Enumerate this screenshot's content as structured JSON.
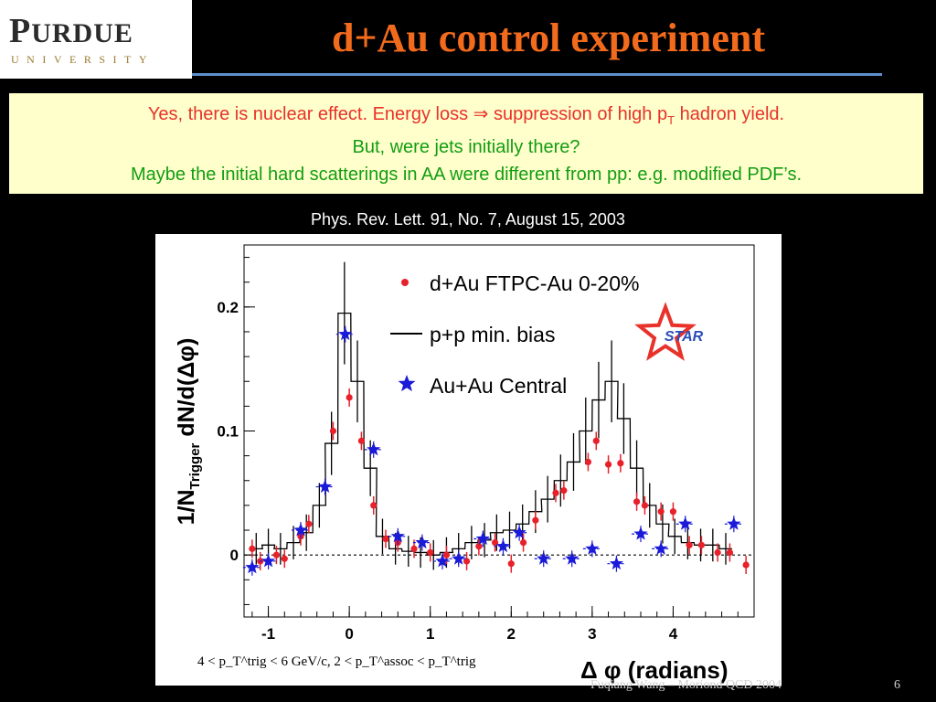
{
  "logo": {
    "name_big": "P",
    "name_small": "URDUE",
    "subtitle": "UNIVERSITY"
  },
  "slide": {
    "title": "d+Au control experiment",
    "callout": {
      "line1_pre": "Yes, there is nuclear effect. Energy loss ⇒ suppression of high p",
      "line1_sub": "T",
      "line1_post": " hadron yield.",
      "line2": "But, were jets initially there?",
      "line3": "Maybe the initial hard scatterings in AA were different from pp: e.g. modified PDF’s."
    },
    "citation": "Phys. Rev. Lett. 91, No. 7, August 15, 2003",
    "footer_author": "Fuqiang Wang – Moriond QCD 2004",
    "page_number": "6"
  },
  "chart_data": {
    "type": "scatter",
    "ylabel": "1/N_Trigger dN/d(Δφ)",
    "xlabel": "Δ φ (radians)",
    "x_ticks": [
      "-1",
      "0",
      "1",
      "2",
      "3",
      "4"
    ],
    "y_ticks": [
      "0",
      "0.1",
      "0.2"
    ],
    "xlim": [
      -1.3,
      5.0
    ],
    "ylim": [
      -0.05,
      0.25
    ],
    "cut_label": "4 < p_T^trig < 6 GeV/c, 2 < p_T^assoc < p_T^trig",
    "experiment_logo": "STAR",
    "colors": {
      "dAu": "#e8202a",
      "pp": "#000000",
      "AuAu": "#1a1ad8"
    },
    "series": [
      {
        "name": "d+Au FTPC-Au 0-20%",
        "marker": "circle",
        "points": [
          [
            -1.2,
            0.005
          ],
          [
            -1.1,
            -0.005
          ],
          [
            -0.9,
            0.0
          ],
          [
            -0.8,
            -0.003
          ],
          [
            -0.6,
            0.015
          ],
          [
            -0.5,
            0.025
          ],
          [
            -0.2,
            0.1
          ],
          [
            0.0,
            0.127
          ],
          [
            0.15,
            0.092
          ],
          [
            0.3,
            0.04
          ],
          [
            0.45,
            0.013
          ],
          [
            0.6,
            0.01
          ],
          [
            0.8,
            0.005
          ],
          [
            1.0,
            0.002
          ],
          [
            1.2,
            0.0
          ],
          [
            1.45,
            -0.005
          ],
          [
            1.6,
            0.007
          ],
          [
            1.8,
            0.01
          ],
          [
            2.0,
            -0.007
          ],
          [
            2.15,
            0.01
          ],
          [
            2.3,
            0.028
          ],
          [
            2.55,
            0.05
          ],
          [
            2.65,
            0.052
          ],
          [
            2.95,
            0.075
          ],
          [
            3.05,
            0.092
          ],
          [
            3.2,
            0.073
          ],
          [
            3.35,
            0.074
          ],
          [
            3.55,
            0.043
          ],
          [
            3.65,
            0.04
          ],
          [
            3.85,
            0.035
          ],
          [
            4.0,
            0.035
          ],
          [
            4.2,
            0.008
          ],
          [
            4.35,
            0.008
          ],
          [
            4.55,
            0.002
          ],
          [
            4.7,
            0.002
          ],
          [
            4.9,
            -0.008
          ]
        ]
      },
      {
        "name": "p+p min. bias",
        "marker": "histogram",
        "bin_width": 0.157,
        "bins": [
          [
            -1.15,
            0.005
          ],
          [
            -1.0,
            0.008
          ],
          [
            -0.85,
            0.005
          ],
          [
            -0.69,
            0.01
          ],
          [
            -0.53,
            0.018
          ],
          [
            -0.37,
            0.04
          ],
          [
            -0.22,
            0.09
          ],
          [
            -0.06,
            0.195
          ],
          [
            0.1,
            0.14
          ],
          [
            0.26,
            0.07
          ],
          [
            0.41,
            0.015
          ],
          [
            0.57,
            0.005
          ],
          [
            0.73,
            0.003
          ],
          [
            0.88,
            0.002
          ],
          [
            1.04,
            0.0
          ],
          [
            1.2,
            0.002
          ],
          [
            1.35,
            0.005
          ],
          [
            1.51,
            0.01
          ],
          [
            1.67,
            0.012
          ],
          [
            1.82,
            0.018
          ],
          [
            1.98,
            0.02
          ],
          [
            2.14,
            0.025
          ],
          [
            2.3,
            0.035
          ],
          [
            2.45,
            0.045
          ],
          [
            2.61,
            0.06
          ],
          [
            2.77,
            0.075
          ],
          [
            2.92,
            0.1
          ],
          [
            3.08,
            0.125
          ],
          [
            3.24,
            0.14
          ],
          [
            3.39,
            0.11
          ],
          [
            3.55,
            0.07
          ],
          [
            3.71,
            0.04
          ],
          [
            3.87,
            0.025
          ],
          [
            4.02,
            0.015
          ],
          [
            4.18,
            0.01
          ],
          [
            4.34,
            0.008
          ],
          [
            4.49,
            0.008
          ],
          [
            4.65,
            0.005
          ]
        ]
      },
      {
        "name": "Au+Au Central",
        "marker": "star",
        "points": [
          [
            -1.2,
            -0.01
          ],
          [
            -1.0,
            -0.005
          ],
          [
            -0.6,
            0.02
          ],
          [
            -0.3,
            0.055
          ],
          [
            -0.05,
            0.178
          ],
          [
            0.3,
            0.085
          ],
          [
            0.6,
            0.015
          ],
          [
            0.9,
            0.01
          ],
          [
            1.15,
            -0.005
          ],
          [
            1.35,
            -0.003
          ],
          [
            1.65,
            0.013
          ],
          [
            1.9,
            0.007
          ],
          [
            2.1,
            0.018
          ],
          [
            2.4,
            -0.003
          ],
          [
            2.75,
            -0.003
          ],
          [
            3.0,
            0.005
          ],
          [
            3.3,
            -0.007
          ],
          [
            3.6,
            0.017
          ],
          [
            3.85,
            0.005
          ],
          [
            4.15,
            0.025
          ],
          [
            4.75,
            0.025
          ]
        ]
      }
    ]
  }
}
